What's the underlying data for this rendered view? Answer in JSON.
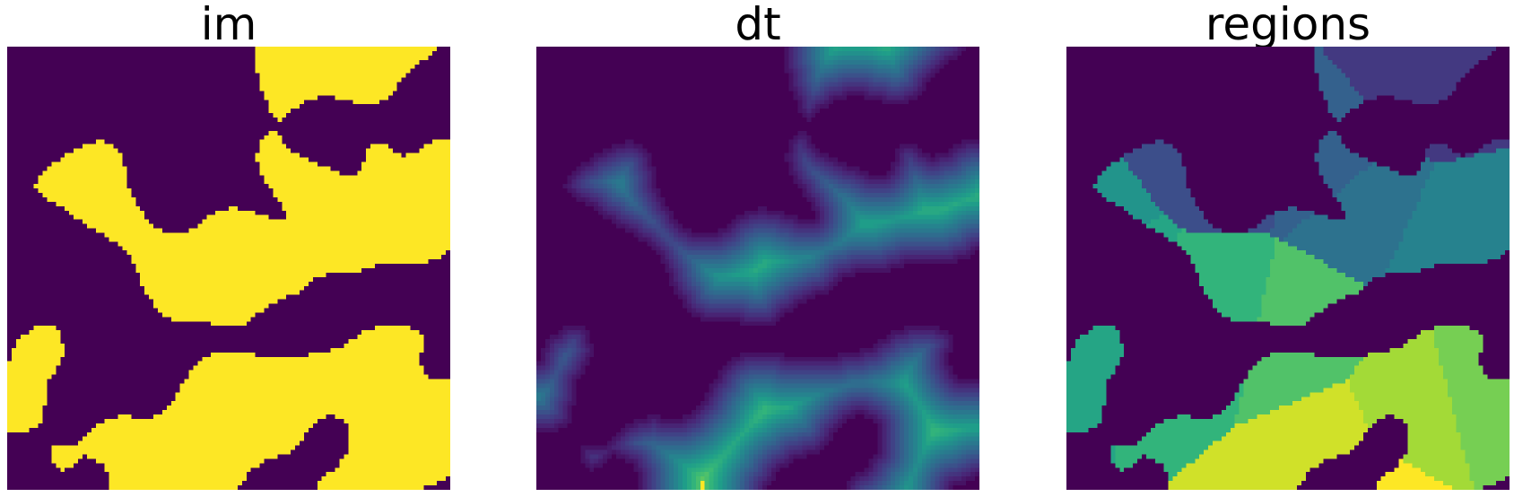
{
  "panels": [
    {
      "title": "im",
      "colormap": "viridis",
      "content": "binary"
    },
    {
      "title": "dt",
      "colormap": "viridis",
      "content": "distance-transform"
    },
    {
      "title": "regions",
      "colormap": "viridis",
      "content": "labeled-regions"
    }
  ],
  "colors": {
    "viridis_low": "#440154",
    "viridis_high": "#fde725",
    "background": "#ffffff"
  }
}
